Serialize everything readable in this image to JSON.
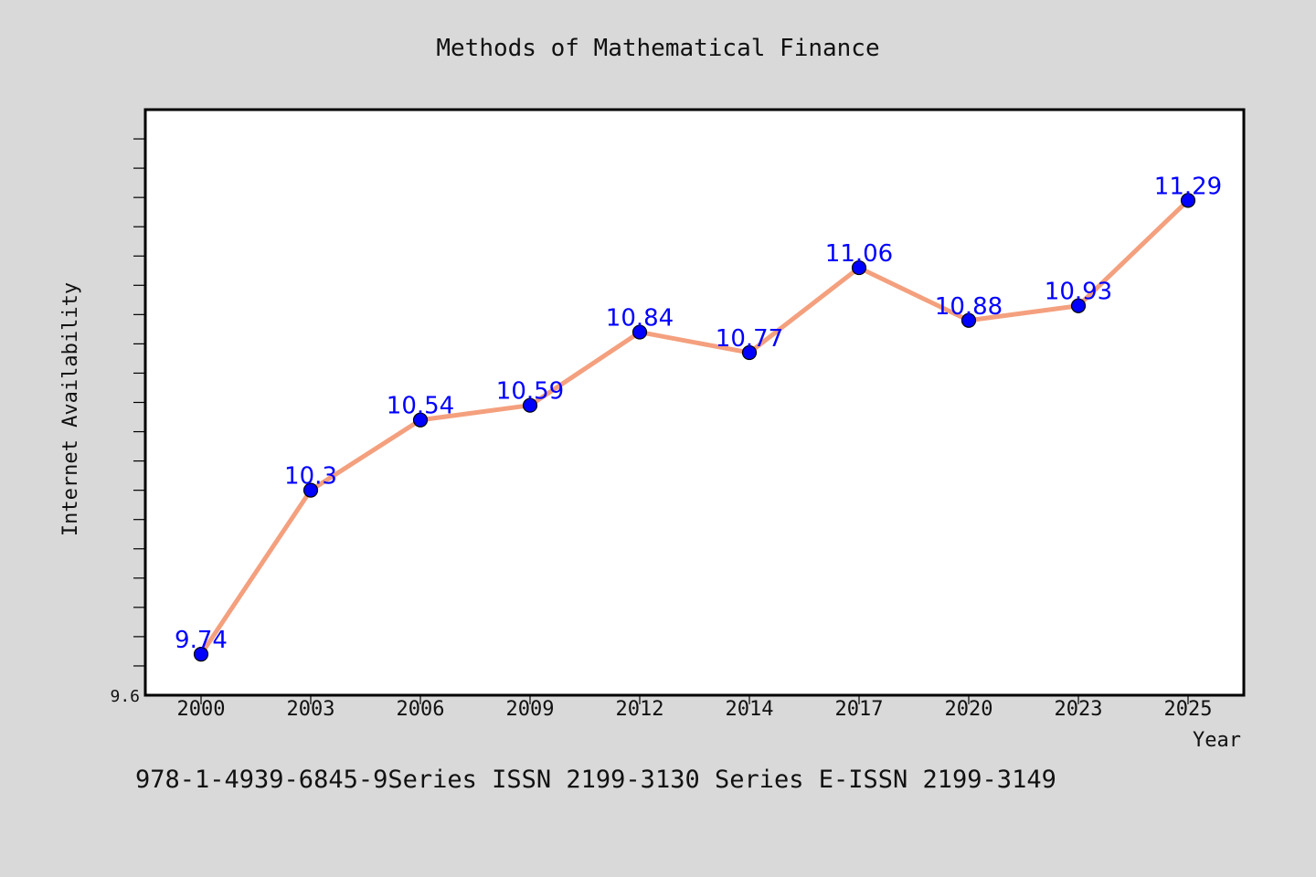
{
  "colors": {
    "background": "#d9d9d9",
    "plot_background": "#ffffff",
    "line": "#f4a07e",
    "marker": "#0000ff",
    "data_label": "#0000ff"
  },
  "footer": "978-1-4939-6845-9Series ISSN 2199-3130 Series E-ISSN 2199-3149",
  "chart_data": {
    "type": "line",
    "title": "Methods of Mathematical Finance",
    "xlabel": "Year",
    "ylabel": "Internet Availability",
    "categories": [
      "2000",
      "2003",
      "2006",
      "2009",
      "2012",
      "2014",
      "2017",
      "2020",
      "2023",
      "2025"
    ],
    "series": [
      {
        "values": [
          9.74,
          10.3,
          10.54,
          10.59,
          10.84,
          10.77,
          11.06,
          10.88,
          10.93,
          11.29
        ],
        "data_labels": [
          "9.74",
          "10.3",
          "10.54",
          "10.59",
          "10.84",
          "10.77",
          "11.06",
          "10.88",
          "10.93",
          "11.29"
        ]
      }
    ],
    "ylim": [
      9.6,
      11.6
    ],
    "y_tick_labels": [
      "9.6"
    ],
    "y_minor_tick_step": 0.1,
    "grid": false,
    "legend": "none",
    "marker": "circle"
  }
}
